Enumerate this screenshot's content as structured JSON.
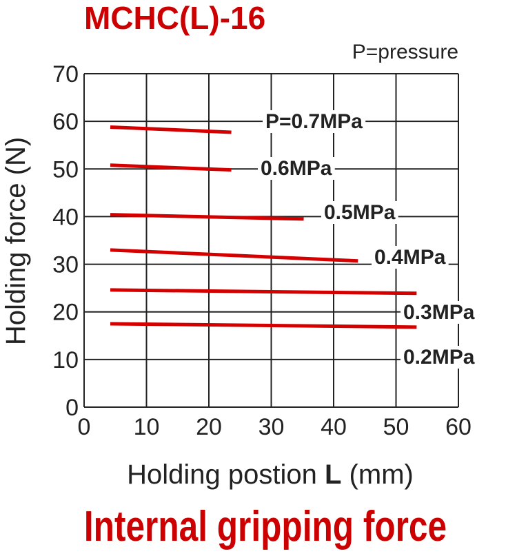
{
  "chart_data": {
    "type": "line",
    "title": "MCHC(L)-16",
    "subtitle": "Internal gripping force",
    "note": "P=pressure",
    "xlabel_prefix": "Holding postion ",
    "xlabel_bold": "L",
    "xlabel_suffix": " (mm)",
    "ylabel": "Holding force (N)",
    "xlim": [
      0,
      60
    ],
    "ylim": [
      0,
      70
    ],
    "xticks": [
      0,
      10,
      20,
      30,
      40,
      50,
      60
    ],
    "yticks": [
      0,
      10,
      20,
      30,
      40,
      50,
      60,
      70
    ],
    "grid": true,
    "series": [
      {
        "name": "P=0.7MPa",
        "x": [
          4.2,
          23.6
        ],
        "y": [
          58.8,
          57.7
        ]
      },
      {
        "name": "0.6MPa",
        "x": [
          4.2,
          23.6
        ],
        "y": [
          50.8,
          49.8
        ]
      },
      {
        "name": "0.5MPa",
        "x": [
          4.2,
          35.2
        ],
        "y": [
          40.4,
          39.5
        ]
      },
      {
        "name": "0.4MPa",
        "x": [
          4.2,
          43.9
        ],
        "y": [
          33.0,
          30.7
        ]
      },
      {
        "name": "0.3MPa",
        "x": [
          4.2,
          53.3
        ],
        "y": [
          24.6,
          23.9
        ]
      },
      {
        "name": "0.2MPa",
        "x": [
          4.2,
          53.3
        ],
        "y": [
          17.5,
          16.8
        ]
      }
    ],
    "colors": {
      "line": "#d40000",
      "title": "#cc0000",
      "grid": "#222222"
    }
  }
}
